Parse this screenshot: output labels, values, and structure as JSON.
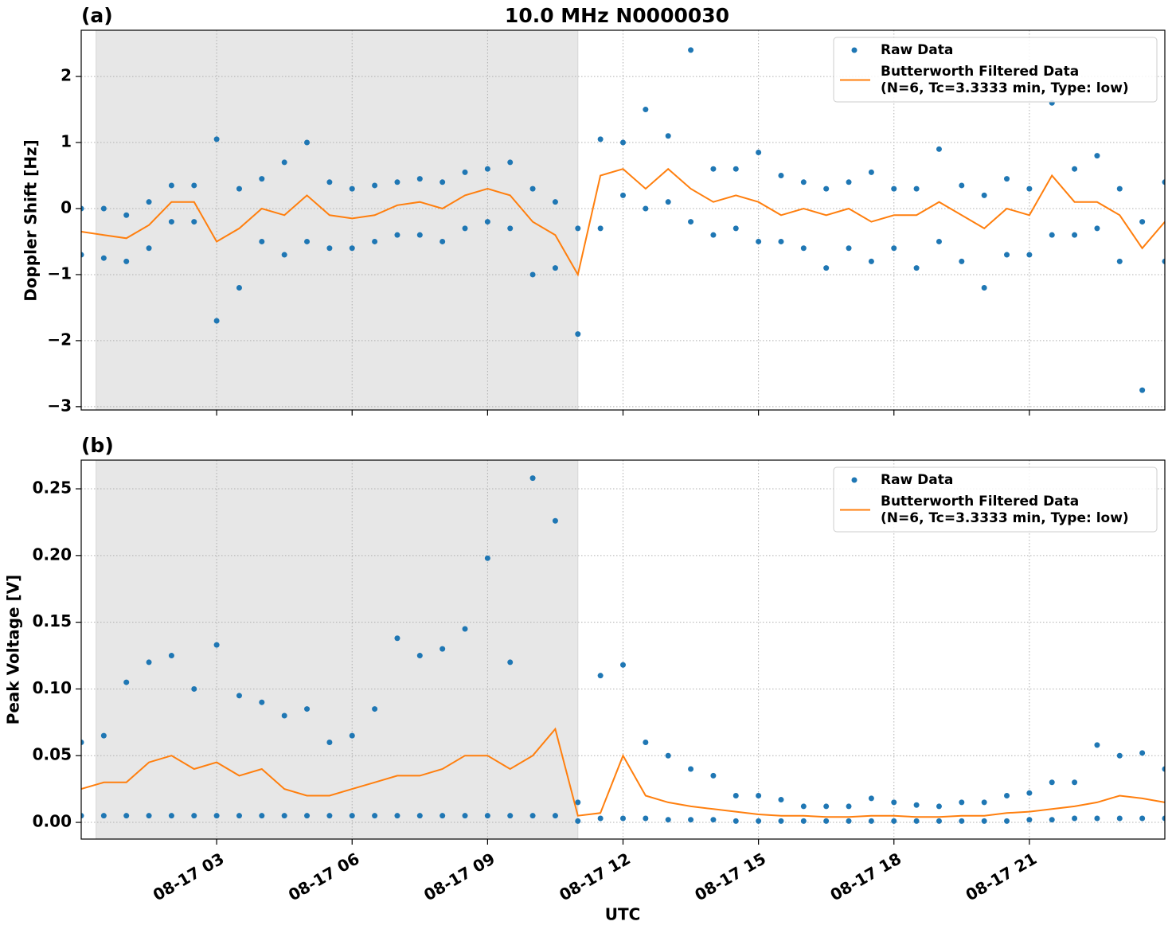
{
  "chart_data": [
    {
      "type": "line",
      "panel_label": "(a)",
      "title": "10.0 MHz N0000030",
      "ylabel": "Doppler Shift [Hz]",
      "xlim": [
        0,
        24
      ],
      "ylim": [
        -3.05,
        2.7
      ],
      "yticks": [
        {
          "value": -3,
          "label": "−3"
        },
        {
          "value": -2,
          "label": "−2"
        },
        {
          "value": -1,
          "label": "−1"
        },
        0,
        1,
        2
      ],
      "grid": true,
      "legend": "upper right",
      "shaded_span": [
        0.33,
        11.0
      ],
      "series": [
        {
          "name": "Raw Data",
          "type": "scatter",
          "color": "#1f77b4",
          "x": [
            0,
            0,
            0.5,
            0.5,
            1,
            1,
            1.5,
            1.5,
            2,
            2,
            2.5,
            2.5,
            3,
            3,
            3.5,
            3.5,
            4,
            4,
            4.5,
            4.5,
            5,
            5,
            5.5,
            5.5,
            6,
            6,
            6.5,
            6.5,
            7,
            7,
            7.5,
            7.5,
            8,
            8,
            8.5,
            8.5,
            9,
            9,
            9.5,
            9.5,
            10,
            10,
            10.5,
            10.5,
            11,
            11,
            11.5,
            11.5,
            12,
            12,
            12.5,
            12.5,
            13,
            13,
            13.5,
            13.5,
            14,
            14,
            14.5,
            14.5,
            15,
            15,
            15.5,
            15.5,
            16,
            16,
            16.5,
            16.5,
            17,
            17,
            17.5,
            17.5,
            18,
            18,
            18.5,
            18.5,
            19,
            19,
            19.5,
            19.5,
            20,
            20,
            20.5,
            20.5,
            21,
            21,
            21.5,
            21.5,
            22,
            22,
            22.5,
            22.5,
            23,
            23,
            23.5,
            23.5,
            24,
            24
          ],
          "values": [
            0.0,
            -0.7,
            0.0,
            -0.75,
            -0.1,
            -0.8,
            0.1,
            -0.6,
            0.35,
            -0.2,
            0.35,
            -0.2,
            1.05,
            -1.7,
            0.3,
            -1.2,
            0.45,
            -0.5,
            0.7,
            -0.7,
            1.0,
            -0.5,
            0.4,
            -0.6,
            0.3,
            -0.6,
            0.35,
            -0.5,
            0.4,
            -0.4,
            0.45,
            -0.4,
            0.4,
            -0.5,
            0.55,
            -0.3,
            0.6,
            -0.2,
            0.7,
            -0.3,
            0.3,
            -1.0,
            0.1,
            -0.9,
            -0.3,
            -1.9,
            1.05,
            -0.3,
            1.0,
            0.2,
            1.5,
            0.0,
            1.1,
            0.1,
            2.4,
            -0.2,
            0.6,
            -0.4,
            0.6,
            -0.3,
            0.85,
            -0.5,
            0.5,
            -0.5,
            0.4,
            -0.6,
            0.3,
            -0.9,
            0.4,
            -0.6,
            0.55,
            -0.8,
            0.3,
            -0.6,
            0.3,
            -0.9,
            0.9,
            -0.5,
            0.35,
            -0.8,
            0.2,
            -1.2,
            0.45,
            -0.7,
            0.3,
            -0.7,
            1.6,
            -0.4,
            0.6,
            -0.4,
            0.8,
            -0.3,
            0.3,
            -0.8,
            -0.2,
            -2.75,
            0.4,
            -0.8
          ]
        },
        {
          "name": "Butterworth Filtered Data\n(N=6, Tc=3.3333 min, Type: low)",
          "type": "line",
          "color": "#ff7f0e",
          "x": [
            0,
            0.5,
            1,
            1.5,
            2,
            2.5,
            3,
            3.5,
            4,
            4.5,
            5,
            5.5,
            6,
            6.5,
            7,
            7.5,
            8,
            8.5,
            9,
            9.5,
            10,
            10.5,
            11,
            11.5,
            12,
            12.5,
            13,
            13.5,
            14,
            14.5,
            15,
            15.5,
            16,
            16.5,
            17,
            17.5,
            18,
            18.5,
            19,
            19.5,
            20,
            20.5,
            21,
            21.5,
            22,
            22.5,
            23,
            23.5,
            24
          ],
          "values": [
            -0.35,
            -0.4,
            -0.45,
            -0.25,
            0.1,
            0.1,
            -0.5,
            -0.3,
            0.0,
            -0.1,
            0.2,
            -0.1,
            -0.15,
            -0.1,
            0.05,
            0.1,
            0.0,
            0.2,
            0.3,
            0.2,
            -0.2,
            -0.4,
            -1.0,
            0.5,
            0.6,
            0.3,
            0.6,
            0.3,
            0.1,
            0.2,
            0.1,
            -0.1,
            0.0,
            -0.1,
            0.0,
            -0.2,
            -0.1,
            -0.1,
            0.1,
            -0.1,
            -0.3,
            0.0,
            -0.1,
            0.5,
            0.1,
            0.1,
            -0.1,
            -0.6,
            -0.2
          ]
        }
      ]
    },
    {
      "type": "line",
      "panel_label": "(b)",
      "ylabel": "Peak Voltage [V]",
      "xlabel": "UTC",
      "xlim": [
        0,
        24
      ],
      "ylim": [
        -0.0125,
        0.2715
      ],
      "xticks": [
        {
          "value": 3,
          "label": "08-17 03"
        },
        {
          "value": 6,
          "label": "08-17 06"
        },
        {
          "value": 9,
          "label": "08-17 09"
        },
        {
          "value": 12,
          "label": "08-17 12"
        },
        {
          "value": 15,
          "label": "08-17 15"
        },
        {
          "value": 18,
          "label": "08-17 18"
        },
        {
          "value": 21,
          "label": "08-17 21"
        }
      ],
      "yticks": [
        {
          "value": 0,
          "label": "0.00"
        },
        0.05,
        {
          "value": 0.1,
          "label": "0.10"
        },
        0.15,
        {
          "value": 0.2,
          "label": "0.20"
        },
        0.25
      ],
      "grid": true,
      "legend": "upper right",
      "shaded_span": [
        0.33,
        11.0
      ],
      "series": [
        {
          "name": "Raw Data",
          "type": "scatter",
          "color": "#1f77b4",
          "x": [
            0,
            0,
            0.5,
            0.5,
            1,
            1,
            1.5,
            1.5,
            2,
            2,
            2.5,
            2.5,
            3,
            3,
            3.5,
            3.5,
            4,
            4,
            4.5,
            4.5,
            5,
            5,
            5.5,
            5.5,
            6,
            6,
            6.5,
            6.5,
            7,
            7,
            7.5,
            7.5,
            8,
            8,
            8.5,
            8.5,
            9,
            9,
            9.5,
            9.5,
            10,
            10,
            10.5,
            10.5,
            11,
            11,
            11.5,
            11.5,
            12,
            12,
            12.5,
            12.5,
            13,
            13,
            13.5,
            13.5,
            14,
            14,
            14.5,
            14.5,
            15,
            15,
            15.5,
            15.5,
            16,
            16,
            16.5,
            16.5,
            17,
            17,
            17.5,
            17.5,
            18,
            18,
            18.5,
            18.5,
            19,
            19,
            19.5,
            19.5,
            20,
            20,
            20.5,
            20.5,
            21,
            21,
            21.5,
            21.5,
            22,
            22,
            22.5,
            22.5,
            23,
            23,
            23.5,
            23.5,
            24,
            24
          ],
          "values": [
            0.06,
            0.005,
            0.065,
            0.005,
            0.105,
            0.005,
            0.12,
            0.005,
            0.125,
            0.005,
            0.1,
            0.005,
            0.133,
            0.005,
            0.095,
            0.005,
            0.09,
            0.005,
            0.08,
            0.005,
            0.085,
            0.005,
            0.06,
            0.005,
            0.065,
            0.005,
            0.085,
            0.005,
            0.138,
            0.005,
            0.125,
            0.005,
            0.13,
            0.005,
            0.145,
            0.005,
            0.198,
            0.005,
            0.12,
            0.005,
            0.258,
            0.005,
            0.226,
            0.005,
            0.015,
            0.001,
            0.11,
            0.003,
            0.118,
            0.003,
            0.06,
            0.003,
            0.05,
            0.002,
            0.04,
            0.002,
            0.035,
            0.002,
            0.02,
            0.001,
            0.02,
            0.001,
            0.017,
            0.001,
            0.012,
            0.001,
            0.012,
            0.001,
            0.012,
            0.001,
            0.018,
            0.001,
            0.015,
            0.001,
            0.013,
            0.001,
            0.012,
            0.001,
            0.015,
            0.001,
            0.015,
            0.001,
            0.02,
            0.001,
            0.022,
            0.002,
            0.03,
            0.002,
            0.03,
            0.003,
            0.058,
            0.003,
            0.05,
            0.003,
            0.052,
            0.003,
            0.04,
            0.003
          ]
        },
        {
          "name": "Butterworth Filtered Data\n(N=6, Tc=3.3333 min, Type: low)",
          "type": "line",
          "color": "#ff7f0e",
          "x": [
            0,
            0.5,
            1,
            1.5,
            2,
            2.5,
            3,
            3.5,
            4,
            4.5,
            5,
            5.5,
            6,
            6.5,
            7,
            7.5,
            8,
            8.5,
            9,
            9.5,
            10,
            10.5,
            11,
            11.5,
            12,
            12.5,
            13,
            13.5,
            14,
            14.5,
            15,
            15.5,
            16,
            16.5,
            17,
            17.5,
            18,
            18.5,
            19,
            19.5,
            20,
            20.5,
            21,
            21.5,
            22,
            22.5,
            23,
            23.5,
            24
          ],
          "values": [
            0.025,
            0.03,
            0.03,
            0.045,
            0.05,
            0.04,
            0.045,
            0.035,
            0.04,
            0.025,
            0.02,
            0.02,
            0.025,
            0.03,
            0.035,
            0.035,
            0.04,
            0.05,
            0.05,
            0.04,
            0.05,
            0.07,
            0.005,
            0.007,
            0.05,
            0.02,
            0.015,
            0.012,
            0.01,
            0.008,
            0.006,
            0.005,
            0.005,
            0.004,
            0.004,
            0.005,
            0.005,
            0.004,
            0.004,
            0.005,
            0.005,
            0.007,
            0.008,
            0.01,
            0.012,
            0.015,
            0.02,
            0.018,
            0.015
          ]
        }
      ]
    }
  ]
}
